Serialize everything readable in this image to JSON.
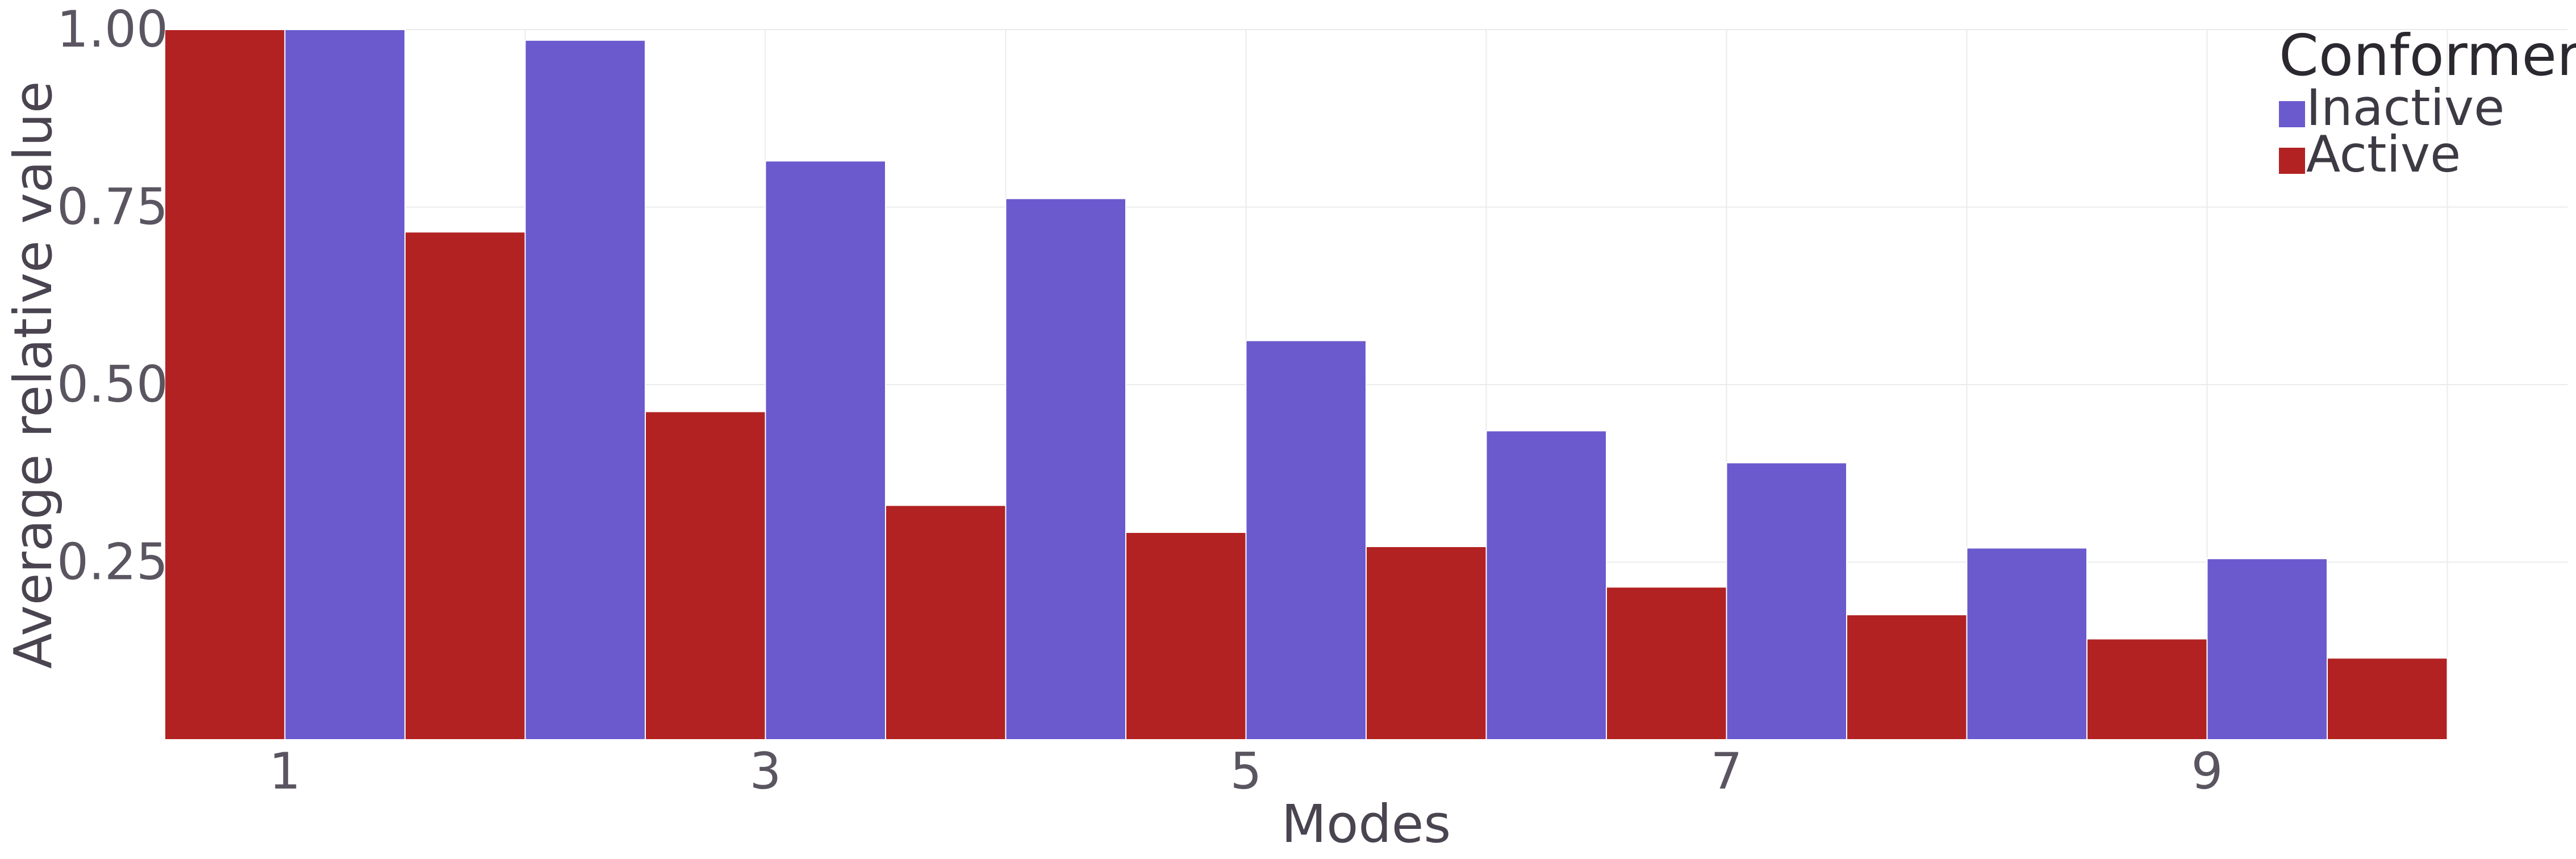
{
  "chart_data": {
    "type": "bar",
    "title": "",
    "xlabel": "Modes",
    "ylabel": "Average relative value",
    "categories": [
      1,
      2,
      3,
      4,
      5,
      6,
      7,
      8,
      9,
      10
    ],
    "x_tick_labels": [
      "1",
      "3",
      "5",
      "7",
      "9"
    ],
    "x_ticks": [
      1,
      3,
      5,
      7,
      9
    ],
    "y_tick_labels": [
      "0.25",
      "0.50",
      "0.75",
      "1.00"
    ],
    "y_ticks": [
      0.25,
      0.5,
      0.75,
      1.0
    ],
    "ylim": [
      0,
      1.0
    ],
    "grid": true,
    "legend": {
      "title": "Conformer",
      "placement": "top-right"
    },
    "series": [
      {
        "name": "Inactive",
        "color": "#6a5acd",
        "values": [
          1.0,
          0.985,
          0.815,
          0.762,
          0.562,
          0.435,
          0.39,
          0.27,
          0.255,
          0.0
        ]
      },
      {
        "name": "Active",
        "color": "#b22222",
        "values": [
          1.0,
          0.715,
          0.462,
          0.33,
          0.292,
          0.272,
          0.215,
          0.176,
          0.142,
          0.115
        ]
      }
    ]
  }
}
